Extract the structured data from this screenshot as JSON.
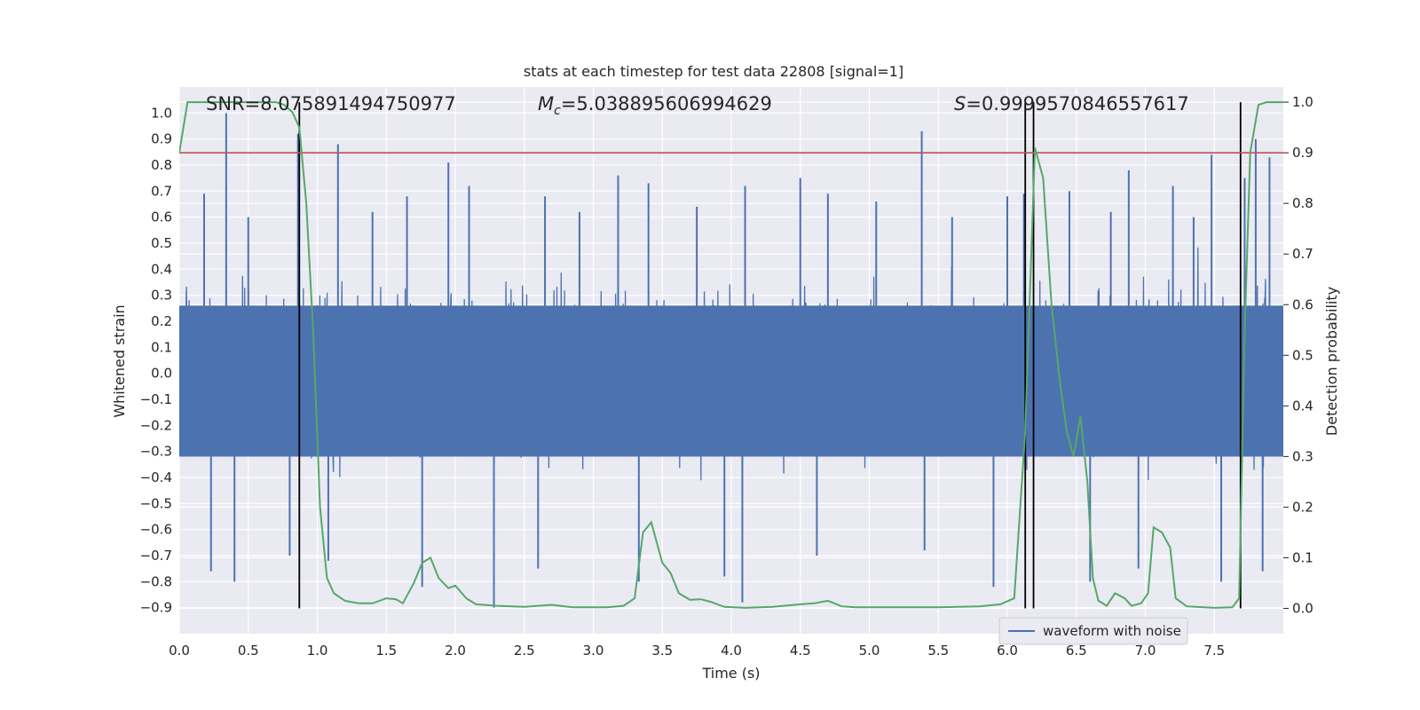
{
  "chart_data": {
    "type": "line",
    "title": "stats at each timestep for test data 22808 [signal=1]",
    "annotations": {
      "snr": "SNR=8.075891494750977",
      "mc_symbol": "M",
      "mc_subscript": "c",
      "mc_value": "=5.038895606994629",
      "s_symbol": "S",
      "s_value": "=0.9999570846557617"
    },
    "xlabel": "Time (s)",
    "ylabel_left": "Whitened strain",
    "ylabel_right": "Detection probability",
    "xlim": [
      0,
      8
    ],
    "ylim_left": [
      -1.0,
      1.1
    ],
    "ylim_right": [
      -0.05,
      1.03
    ],
    "x_ticks": [
      "0.0",
      "0.5",
      "1.0",
      "1.5",
      "2.0",
      "2.5",
      "3.0",
      "3.5",
      "4.0",
      "4.5",
      "5.0",
      "5.5",
      "6.0",
      "6.5",
      "7.0",
      "7.5"
    ],
    "x_tick_values": [
      0,
      0.5,
      1,
      1.5,
      2,
      2.5,
      3,
      3.5,
      4,
      4.5,
      5,
      5.5,
      6,
      6.5,
      7,
      7.5
    ],
    "y_left_ticks": [
      "1.0",
      "0.9",
      "0.8",
      "0.7",
      "0.6",
      "0.5",
      "0.4",
      "0.3",
      "0.2",
      "0.1",
      "0.0",
      "−0.1",
      "−0.2",
      "−0.3",
      "−0.4",
      "−0.5",
      "−0.6",
      "−0.7",
      "−0.8",
      "−0.9"
    ],
    "y_left_tick_values": [
      1.0,
      0.9,
      0.8,
      0.7,
      0.6,
      0.5,
      0.4,
      0.3,
      0.2,
      0.1,
      0.0,
      -0.1,
      -0.2,
      -0.3,
      -0.4,
      -0.5,
      -0.6,
      -0.7,
      -0.8,
      -0.9
    ],
    "y_right_ticks": [
      "1.0",
      "0.9",
      "0.8",
      "0.7",
      "0.6",
      "0.5",
      "0.4",
      "0.3",
      "0.2",
      "0.1",
      "0.0"
    ],
    "y_right_tick_values": [
      1.0,
      0.9,
      0.8,
      0.7,
      0.6,
      0.5,
      0.4,
      0.3,
      0.2,
      0.1,
      0.0
    ],
    "grid": true,
    "legend": {
      "placement": "lower-right",
      "entries": [
        "waveform with noise"
      ]
    },
    "colors": {
      "waveform": "#4c72b0",
      "probability": "#55a868",
      "threshold": "#c44e52",
      "markers": "#000000",
      "background": "#eaeaf2",
      "grid": "#ffffff"
    },
    "threshold_probability": 0.9,
    "vertical_markers_x": [
      0.87,
      6.13,
      6.19,
      7.69
    ],
    "waveform_spikes": [
      {
        "x": 0.34,
        "y": 1.0
      },
      {
        "x": 0.18,
        "y": 0.69
      },
      {
        "x": 0.23,
        "y": -0.76
      },
      {
        "x": 0.4,
        "y": -0.8
      },
      {
        "x": 0.5,
        "y": 0.6
      },
      {
        "x": 0.8,
        "y": -0.7
      },
      {
        "x": 0.86,
        "y": 0.92
      },
      {
        "x": 1.15,
        "y": 0.88
      },
      {
        "x": 1.08,
        "y": -0.72
      },
      {
        "x": 1.4,
        "y": 0.62
      },
      {
        "x": 1.65,
        "y": 0.68
      },
      {
        "x": 1.76,
        "y": -0.82
      },
      {
        "x": 1.95,
        "y": 0.81
      },
      {
        "x": 2.1,
        "y": 0.72
      },
      {
        "x": 2.28,
        "y": -0.9
      },
      {
        "x": 2.6,
        "y": -0.75
      },
      {
        "x": 2.65,
        "y": 0.68
      },
      {
        "x": 2.9,
        "y": 0.62
      },
      {
        "x": 3.18,
        "y": 0.76
      },
      {
        "x": 3.4,
        "y": 0.73
      },
      {
        "x": 3.33,
        "y": -0.8
      },
      {
        "x": 3.75,
        "y": 0.64
      },
      {
        "x": 3.95,
        "y": -0.78
      },
      {
        "x": 4.08,
        "y": -0.88
      },
      {
        "x": 4.1,
        "y": 0.72
      },
      {
        "x": 4.5,
        "y": 0.75
      },
      {
        "x": 4.7,
        "y": 0.69
      },
      {
        "x": 4.62,
        "y": -0.7
      },
      {
        "x": 5.05,
        "y": 0.66
      },
      {
        "x": 5.38,
        "y": 0.93
      },
      {
        "x": 5.4,
        "y": -0.68
      },
      {
        "x": 5.6,
        "y": 0.6
      },
      {
        "x": 5.9,
        "y": -0.82
      },
      {
        "x": 6.0,
        "y": 0.68
      },
      {
        "x": 6.12,
        "y": 0.69
      },
      {
        "x": 6.45,
        "y": 0.7
      },
      {
        "x": 6.6,
        "y": -0.8
      },
      {
        "x": 6.75,
        "y": 0.62
      },
      {
        "x": 6.88,
        "y": 0.78
      },
      {
        "x": 6.95,
        "y": -0.75
      },
      {
        "x": 7.2,
        "y": 0.72
      },
      {
        "x": 7.35,
        "y": 0.6
      },
      {
        "x": 7.48,
        "y": 0.84
      },
      {
        "x": 7.55,
        "y": -0.8
      },
      {
        "x": 7.72,
        "y": 0.75
      },
      {
        "x": 7.8,
        "y": 0.9
      },
      {
        "x": 7.9,
        "y": 0.83
      },
      {
        "x": 7.85,
        "y": -0.76
      }
    ],
    "detection_probability": [
      {
        "x": 0.0,
        "y": 0.9
      },
      {
        "x": 0.06,
        "y": 1.0
      },
      {
        "x": 0.2,
        "y": 1.0
      },
      {
        "x": 0.4,
        "y": 1.0
      },
      {
        "x": 0.6,
        "y": 1.0
      },
      {
        "x": 0.7,
        "y": 1.0
      },
      {
        "x": 0.76,
        "y": 0.995
      },
      {
        "x": 0.82,
        "y": 0.98
      },
      {
        "x": 0.87,
        "y": 0.95
      },
      {
        "x": 0.92,
        "y": 0.8
      },
      {
        "x": 0.97,
        "y": 0.55
      },
      {
        "x": 1.02,
        "y": 0.2
      },
      {
        "x": 1.07,
        "y": 0.06
      },
      {
        "x": 1.12,
        "y": 0.03
      },
      {
        "x": 1.2,
        "y": 0.015
      },
      {
        "x": 1.3,
        "y": 0.01
      },
      {
        "x": 1.4,
        "y": 0.01
      },
      {
        "x": 1.5,
        "y": 0.02
      },
      {
        "x": 1.57,
        "y": 0.018
      },
      {
        "x": 1.62,
        "y": 0.01
      },
      {
        "x": 1.7,
        "y": 0.05
      },
      {
        "x": 1.76,
        "y": 0.09
      },
      {
        "x": 1.82,
        "y": 0.1
      },
      {
        "x": 1.88,
        "y": 0.06
      },
      {
        "x": 1.95,
        "y": 0.04
      },
      {
        "x": 2.0,
        "y": 0.045
      },
      {
        "x": 2.08,
        "y": 0.02
      },
      {
        "x": 2.15,
        "y": 0.008
      },
      {
        "x": 2.3,
        "y": 0.005
      },
      {
        "x": 2.5,
        "y": 0.003
      },
      {
        "x": 2.7,
        "y": 0.007
      },
      {
        "x": 2.85,
        "y": 0.002
      },
      {
        "x": 3.1,
        "y": 0.002
      },
      {
        "x": 3.22,
        "y": 0.005
      },
      {
        "x": 3.3,
        "y": 0.02
      },
      {
        "x": 3.36,
        "y": 0.15
      },
      {
        "x": 3.42,
        "y": 0.17
      },
      {
        "x": 3.5,
        "y": 0.09
      },
      {
        "x": 3.56,
        "y": 0.07
      },
      {
        "x": 3.62,
        "y": 0.03
      },
      {
        "x": 3.7,
        "y": 0.017
      },
      {
        "x": 3.78,
        "y": 0.018
      },
      {
        "x": 3.85,
        "y": 0.013
      },
      {
        "x": 3.95,
        "y": 0.003
      },
      {
        "x": 4.1,
        "y": 0.001
      },
      {
        "x": 4.3,
        "y": 0.003
      },
      {
        "x": 4.5,
        "y": 0.008
      },
      {
        "x": 4.6,
        "y": 0.01
      },
      {
        "x": 4.7,
        "y": 0.015
      },
      {
        "x": 4.8,
        "y": 0.004
      },
      {
        "x": 4.9,
        "y": 0.002
      },
      {
        "x": 5.5,
        "y": 0.002
      },
      {
        "x": 5.8,
        "y": 0.004
      },
      {
        "x": 5.95,
        "y": 0.008
      },
      {
        "x": 6.05,
        "y": 0.02
      },
      {
        "x": 6.13,
        "y": 0.35
      },
      {
        "x": 6.2,
        "y": 0.91
      },
      {
        "x": 6.26,
        "y": 0.85
      },
      {
        "x": 6.32,
        "y": 0.6
      },
      {
        "x": 6.38,
        "y": 0.45
      },
      {
        "x": 6.43,
        "y": 0.35
      },
      {
        "x": 6.48,
        "y": 0.3
      },
      {
        "x": 6.53,
        "y": 0.38
      },
      {
        "x": 6.58,
        "y": 0.25
      },
      {
        "x": 6.62,
        "y": 0.06
      },
      {
        "x": 6.66,
        "y": 0.015
      },
      {
        "x": 6.72,
        "y": 0.005
      },
      {
        "x": 6.78,
        "y": 0.03
      },
      {
        "x": 6.85,
        "y": 0.02
      },
      {
        "x": 6.9,
        "y": 0.005
      },
      {
        "x": 6.97,
        "y": 0.01
      },
      {
        "x": 7.02,
        "y": 0.03
      },
      {
        "x": 7.06,
        "y": 0.16
      },
      {
        "x": 7.12,
        "y": 0.15
      },
      {
        "x": 7.18,
        "y": 0.12
      },
      {
        "x": 7.22,
        "y": 0.02
      },
      {
        "x": 7.3,
        "y": 0.004
      },
      {
        "x": 7.5,
        "y": 0.001
      },
      {
        "x": 7.63,
        "y": 0.002
      },
      {
        "x": 7.68,
        "y": 0.02
      },
      {
        "x": 7.72,
        "y": 0.55
      },
      {
        "x": 7.76,
        "y": 0.9
      },
      {
        "x": 7.82,
        "y": 0.995
      },
      {
        "x": 7.88,
        "y": 1.0
      },
      {
        "x": 8.0,
        "y": 1.0
      }
    ]
  }
}
